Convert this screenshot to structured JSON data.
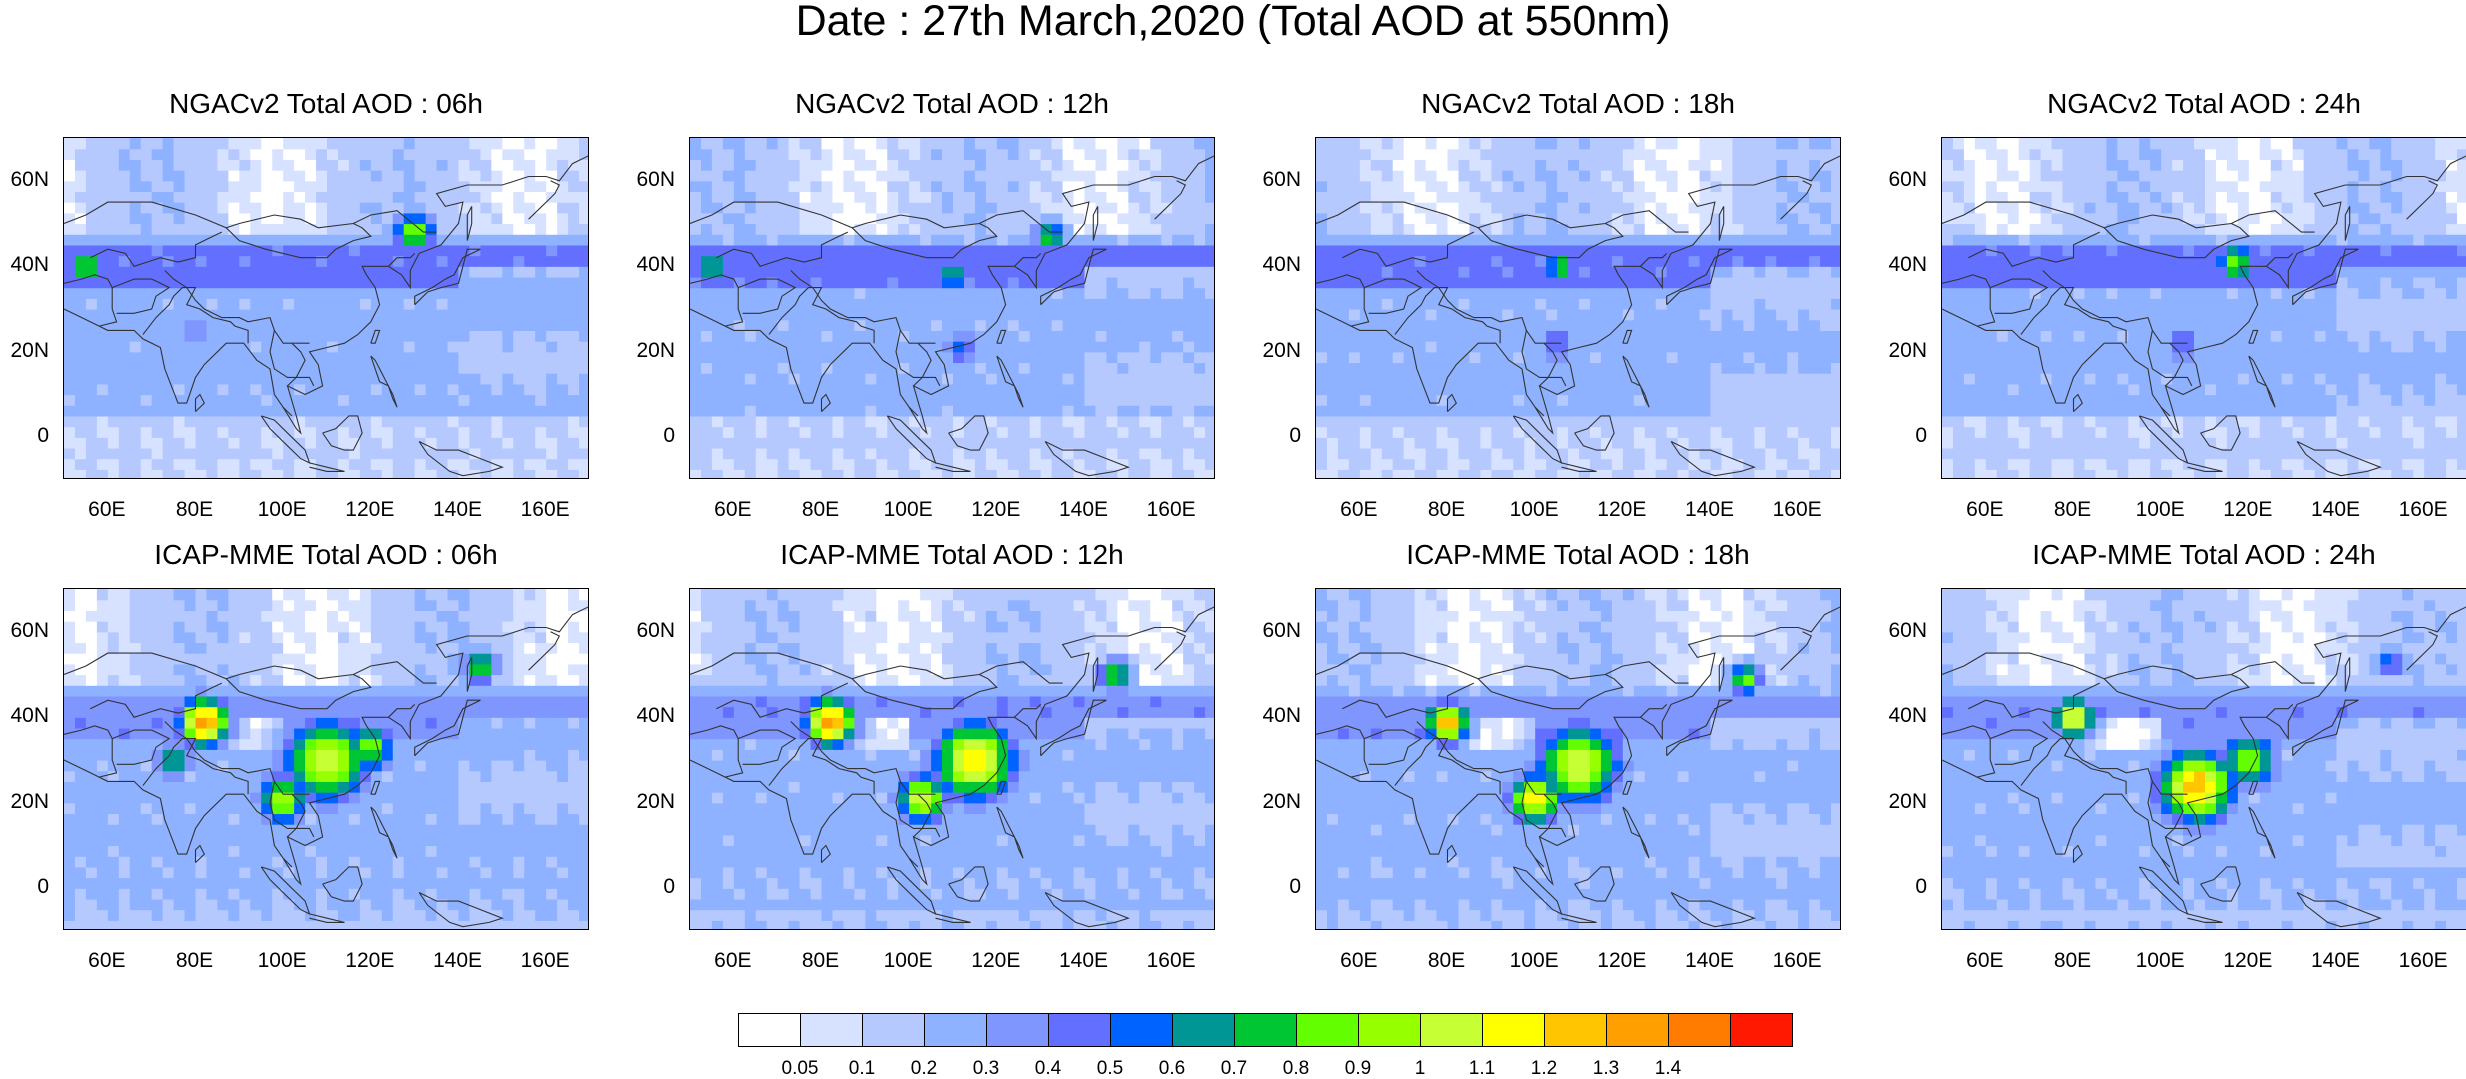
{
  "title": "Date : 27th March,2020 (Total AOD at 550nm)",
  "axes": {
    "lon_range": [
      50,
      170
    ],
    "lat_range": [
      -10,
      70
    ],
    "lon_ticks": [
      "60E",
      "80E",
      "100E",
      "120E",
      "140E",
      "160E"
    ],
    "lon_tick_values": [
      60,
      80,
      100,
      120,
      140,
      160
    ],
    "lat_ticks": [
      "60N",
      "40N",
      "20N",
      "0"
    ],
    "lat_tick_values": [
      60,
      40,
      20,
      0
    ]
  },
  "panels": [
    {
      "title": "NGACv2 Total AOD : 06h",
      "model": "NGACv2",
      "hour": "06h",
      "hotspots": [
        {
          "lon": 55,
          "lat": 40,
          "aod": 0.8,
          "r": 5
        },
        {
          "lon": 130,
          "lat": 48,
          "aod": 0.9,
          "r": 5
        },
        {
          "lon": 100,
          "lat": 40,
          "aod": 0.5,
          "r": 6
        },
        {
          "lon": 80,
          "lat": 25,
          "aod": 0.4,
          "r": 7
        }
      ]
    },
    {
      "title": "NGACv2 Total AOD : 12h",
      "model": "NGACv2",
      "hour": "12h",
      "hotspots": [
        {
          "lon": 55,
          "lat": 40,
          "aod": 0.7,
          "r": 5
        },
        {
          "lon": 132,
          "lat": 47,
          "aod": 0.8,
          "r": 4
        },
        {
          "lon": 110,
          "lat": 38,
          "aod": 0.7,
          "r": 4
        },
        {
          "lon": 112,
          "lat": 21,
          "aod": 0.6,
          "r": 4
        }
      ]
    },
    {
      "title": "NGACv2 Total AOD : 18h",
      "model": "NGACv2",
      "hour": "18h",
      "hotspots": [
        {
          "lon": 106,
          "lat": 40,
          "aod": 0.8,
          "r": 4
        },
        {
          "lon": 55,
          "lat": 40,
          "aod": 0.5,
          "r": 6
        },
        {
          "lon": 105,
          "lat": 22,
          "aod": 0.5,
          "r": 5
        }
      ]
    },
    {
      "title": "NGACv2 Total AOD : 24h",
      "model": "NGACv2",
      "hour": "24h",
      "hotspots": [
        {
          "lon": 117,
          "lat": 41,
          "aod": 0.9,
          "r": 5
        },
        {
          "lon": 55,
          "lat": 40,
          "aod": 0.5,
          "r": 7
        },
        {
          "lon": 105,
          "lat": 22,
          "aod": 0.5,
          "r": 5
        }
      ]
    },
    {
      "title": "ICAP-MME Total AOD : 06h",
      "model": "ICAP-MME",
      "hour": "06h",
      "hotspots": [
        {
          "lon": 82,
          "lat": 39,
          "aod": 1.4,
          "r": 6
        },
        {
          "lon": 110,
          "lat": 30,
          "aod": 1.1,
          "r": 10
        },
        {
          "lon": 120,
          "lat": 33,
          "aod": 0.9,
          "r": 6
        },
        {
          "lon": 100,
          "lat": 21,
          "aod": 1.0,
          "r": 6
        },
        {
          "lon": 145,
          "lat": 52,
          "aod": 0.9,
          "r": 4
        },
        {
          "lon": 75,
          "lat": 30,
          "aod": 0.8,
          "r": 4
        }
      ]
    },
    {
      "title": "ICAP-MME Total AOD : 12h",
      "model": "ICAP-MME",
      "hour": "12h",
      "hotspots": [
        {
          "lon": 82,
          "lat": 39,
          "aod": 1.4,
          "r": 6
        },
        {
          "lon": 115,
          "lat": 30,
          "aod": 1.2,
          "r": 10
        },
        {
          "lon": 103,
          "lat": 21,
          "aod": 1.1,
          "r": 6
        },
        {
          "lon": 147,
          "lat": 50,
          "aod": 0.9,
          "r": 4
        }
      ]
    },
    {
      "title": "ICAP-MME Total AOD : 18h",
      "model": "ICAP-MME",
      "hour": "18h",
      "hotspots": [
        {
          "lon": 80,
          "lat": 39,
          "aod": 1.3,
          "r": 5
        },
        {
          "lon": 110,
          "lat": 29,
          "aod": 1.1,
          "r": 10
        },
        {
          "lon": 100,
          "lat": 21,
          "aod": 1.2,
          "r": 6
        },
        {
          "lon": 148,
          "lat": 49,
          "aod": 0.9,
          "r": 4
        }
      ]
    },
    {
      "title": "ICAP-MME Total AOD : 24h",
      "model": "ICAP-MME",
      "hour": "24h",
      "hotspots": [
        {
          "lon": 80,
          "lat": 40,
          "aod": 1.2,
          "r": 5
        },
        {
          "lon": 108,
          "lat": 24,
          "aod": 1.3,
          "r": 9
        },
        {
          "lon": 120,
          "lat": 30,
          "aod": 0.9,
          "r": 7
        },
        {
          "lon": 152,
          "lat": 53,
          "aod": 0.6,
          "r": 4
        }
      ]
    }
  ],
  "colorbar": {
    "levels": [
      "0.05",
      "0.1",
      "0.2",
      "0.3",
      "0.4",
      "0.5",
      "0.6",
      "0.7",
      "0.8",
      "0.9",
      "1",
      "1.1",
      "1.2",
      "1.3",
      "1.4"
    ],
    "level_values": [
      0.05,
      0.1,
      0.2,
      0.3,
      0.4,
      0.5,
      0.6,
      0.7,
      0.8,
      0.9,
      1.0,
      1.1,
      1.2,
      1.3,
      1.4
    ],
    "colors": [
      "#ffffff",
      "#d6e2ff",
      "#b5c9ff",
      "#8eb2ff",
      "#7f96ff",
      "#6370ff",
      "#0063ff",
      "#009696",
      "#00c633",
      "#63ff00",
      "#96ff00",
      "#c6ff33",
      "#ffff00",
      "#ffc600",
      "#ffa000",
      "#ff7c00",
      "#ff1900"
    ]
  }
}
